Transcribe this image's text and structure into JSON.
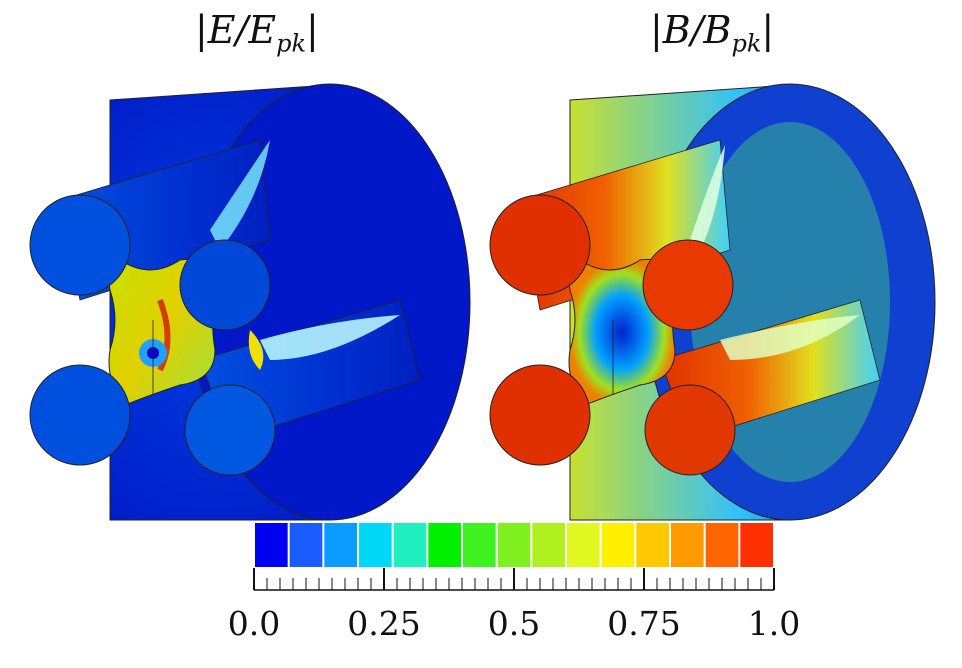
{
  "titles": {
    "left": "|E/E",
    "left_sub": "pk",
    "right": "|B/B",
    "right_sub": "pk"
  },
  "colorbar": {
    "colors": [
      "#0000f0",
      "#1a5cff",
      "#0a9cff",
      "#00d8f8",
      "#20f0c0",
      "#00f000",
      "#40f020",
      "#80f020",
      "#b0f020",
      "#e0f820",
      "#fff000",
      "#ffc800",
      "#ff9a00",
      "#ff6400",
      "#ff3000"
    ],
    "tick_values": [
      "0.0",
      "0.25",
      "0.5",
      "0.75",
      "1.0"
    ]
  }
}
